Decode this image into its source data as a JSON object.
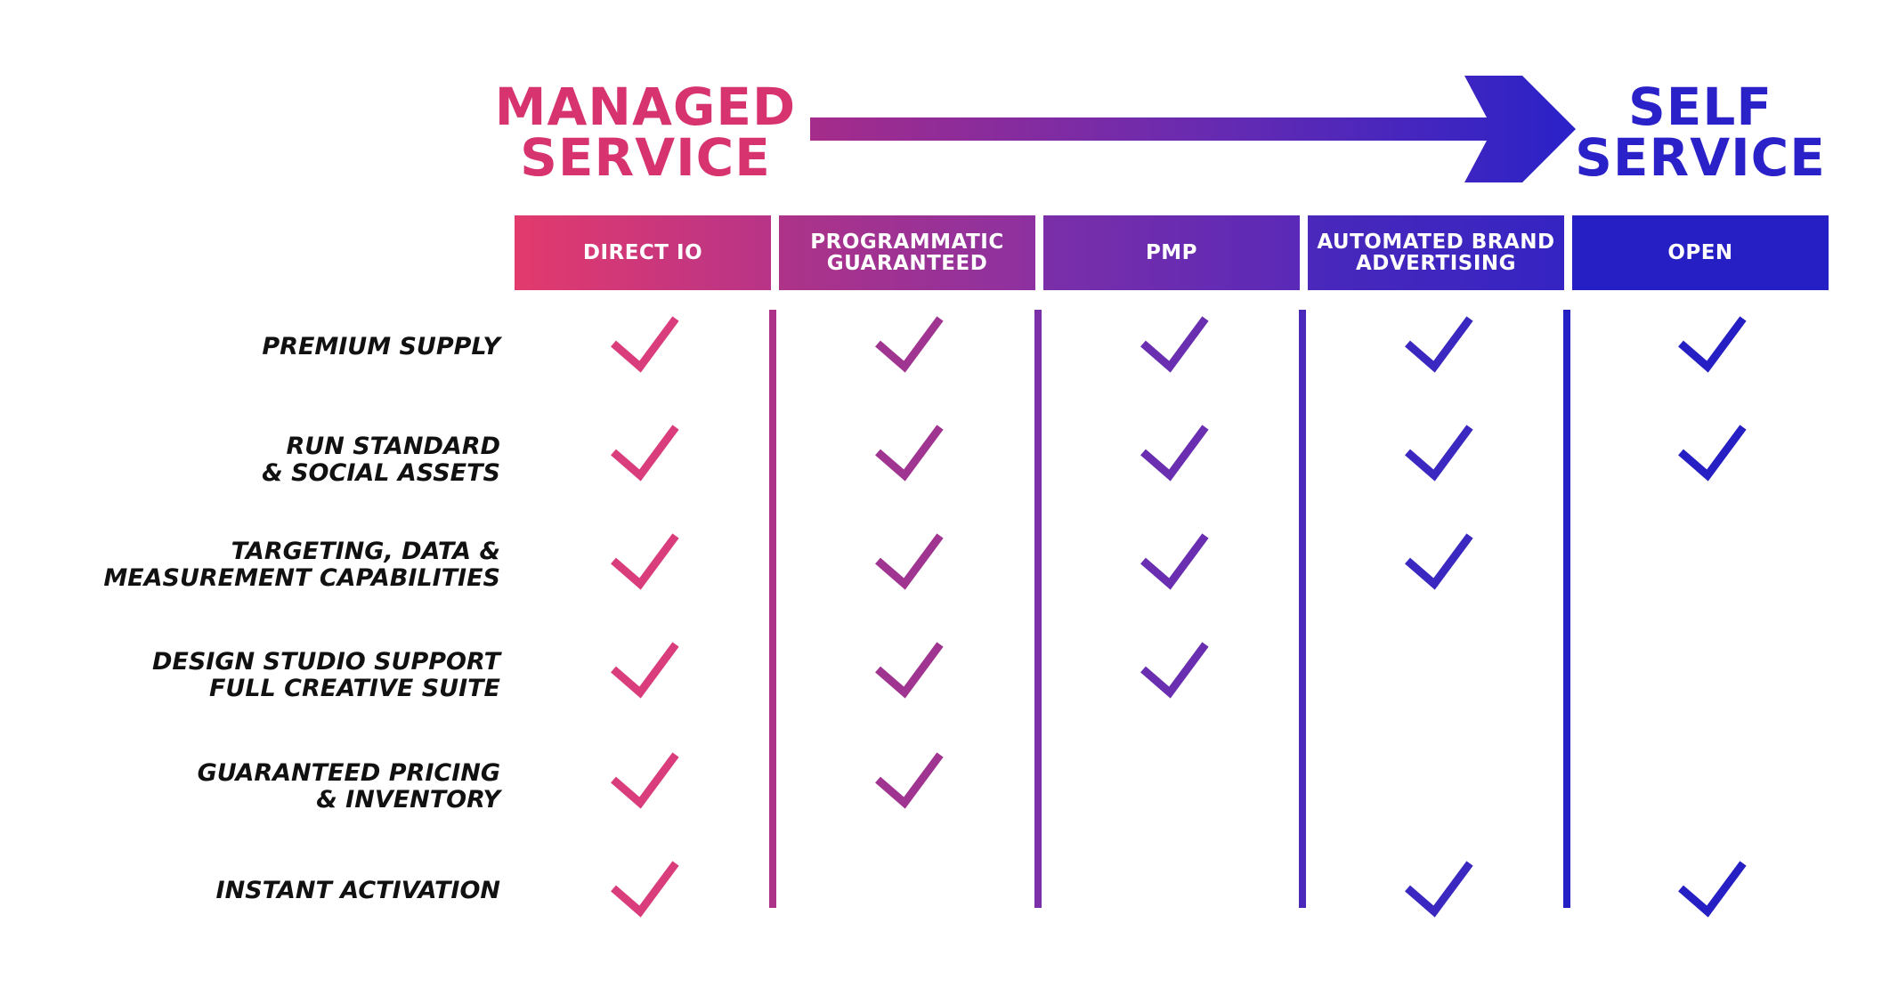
{
  "title_left": "MANAGED\nSERVICE",
  "title_right": "SELF\nSERVICE",
  "colors": {
    "managed": "#d6336f",
    "self": "#2a22c8"
  },
  "columns": [
    {
      "label": "DIRECT IO",
      "check_color": "#d93d7b"
    },
    {
      "label": "PROGRAMMATIC\nGUARANTEED",
      "check_color": "#a03591"
    },
    {
      "label": "PMP",
      "check_color": "#6a2fb0"
    },
    {
      "label": "AUTOMATED BRAND\nADVERTISING",
      "check_color": "#3a28c0"
    },
    {
      "label": "OPEN",
      "check_color": "#2620c4"
    }
  ],
  "rows": [
    {
      "label": "PREMIUM SUPPLY",
      "checks": [
        true,
        true,
        true,
        true,
        true
      ]
    },
    {
      "label": "RUN STANDARD\n& SOCIAL ASSETS",
      "checks": [
        true,
        true,
        true,
        true,
        true
      ]
    },
    {
      "label": "TARGETING, DATA &\nMEASUREMENT CAPABILITIES",
      "checks": [
        true,
        true,
        true,
        true,
        false
      ]
    },
    {
      "label": "DESIGN STUDIO SUPPORT\nFULL CREATIVE SUITE",
      "checks": [
        true,
        true,
        true,
        false,
        false
      ]
    },
    {
      "label": "GUARANTEED PRICING\n& INVENTORY",
      "checks": [
        true,
        true,
        false,
        false,
        false
      ]
    },
    {
      "label": "INSTANT ACTIVATION",
      "checks": [
        true,
        false,
        false,
        true,
        true
      ]
    }
  ]
}
